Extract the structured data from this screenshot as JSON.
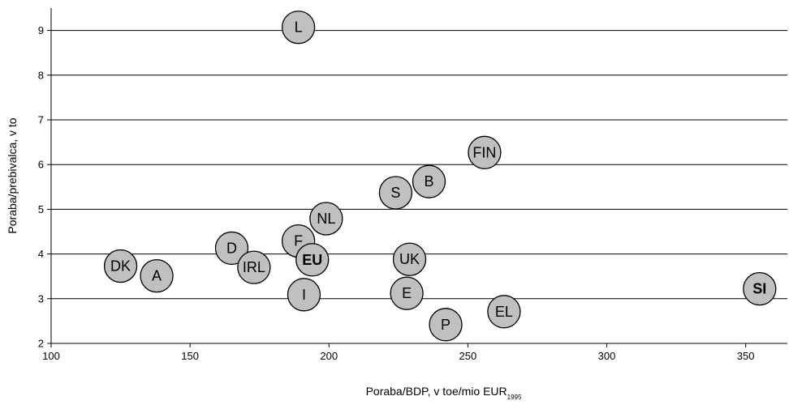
{
  "chart_data": {
    "type": "scatter",
    "title": "",
    "xlabel": "Poraba/BDP, v  toe/mio EUR",
    "xlabel_subscript": "1995",
    "ylabel": "Poraba/prebivalca, v to",
    "xlim": [
      100,
      365
    ],
    "ylim": [
      2,
      9.5
    ],
    "xticks": [
      100,
      150,
      200,
      250,
      300,
      350
    ],
    "yticks": [
      2,
      3,
      4,
      5,
      6,
      7,
      8,
      9
    ],
    "grid": "horizontal",
    "marker_color": "#c0c0c0",
    "points": [
      {
        "label": "L",
        "x": 189,
        "y": 9.07,
        "bold": false
      },
      {
        "label": "FIN",
        "x": 256,
        "y": 6.27,
        "bold": false
      },
      {
        "label": "B",
        "x": 236,
        "y": 5.62,
        "bold": false
      },
      {
        "label": "S",
        "x": 224,
        "y": 5.37,
        "bold": false
      },
      {
        "label": "NL",
        "x": 199,
        "y": 4.79,
        "bold": false
      },
      {
        "label": "F",
        "x": 189,
        "y": 4.29,
        "bold": false
      },
      {
        "label": "D",
        "x": 165,
        "y": 4.13,
        "bold": false
      },
      {
        "label": "EU",
        "x": 194,
        "y": 3.87,
        "bold": true
      },
      {
        "label": "UK",
        "x": 229,
        "y": 3.88,
        "bold": false
      },
      {
        "label": "IRL",
        "x": 173,
        "y": 3.7,
        "bold": false
      },
      {
        "label": "DK",
        "x": 125,
        "y": 3.73,
        "bold": false
      },
      {
        "label": "A",
        "x": 138,
        "y": 3.51,
        "bold": false
      },
      {
        "label": "SI",
        "x": 355,
        "y": 3.22,
        "bold": true
      },
      {
        "label": "E",
        "x": 228,
        "y": 3.12,
        "bold": false
      },
      {
        "label": "I",
        "x": 191,
        "y": 3.09,
        "bold": false
      },
      {
        "label": "EL",
        "x": 263,
        "y": 2.71,
        "bold": false
      },
      {
        "label": "P",
        "x": 242,
        "y": 2.42,
        "bold": false
      }
    ]
  }
}
